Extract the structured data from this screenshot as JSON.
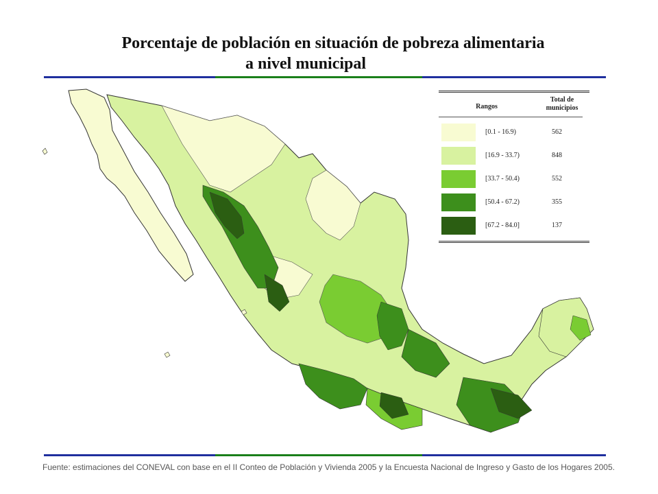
{
  "title": {
    "line1": "Porcentaje de población en situación de pobreza alimentaria",
    "line2": "a nivel municipal"
  },
  "rule_colors": [
    "#1f2f9e",
    "#1a7f1a",
    "#1f2f9e"
  ],
  "legend": {
    "header_ranges": "Rangos",
    "header_total_line1": "Total de",
    "header_total_line2": "municipios",
    "items": [
      {
        "range": "[0.1 - 16.9)",
        "count": "562",
        "color": "#f8fbd2"
      },
      {
        "range": "[16.9 - 33.7)",
        "count": "848",
        "color": "#d8f2a0"
      },
      {
        "range": "[33.7 - 50.4)",
        "count": "552",
        "color": "#7acc32"
      },
      {
        "range": "[50.4 - 67.2)",
        "count": "355",
        "color": "#3d8f1c"
      },
      {
        "range": "[67.2 - 84.0]",
        "count": "137",
        "color": "#2b5e12"
      }
    ]
  },
  "source": "Fuente: estimaciones del CONEVAL con base en el II Conteo de Población y Vivienda 2005 y la Encuesta Nacional de Ingreso y Gasto de los Hogares 2005."
}
